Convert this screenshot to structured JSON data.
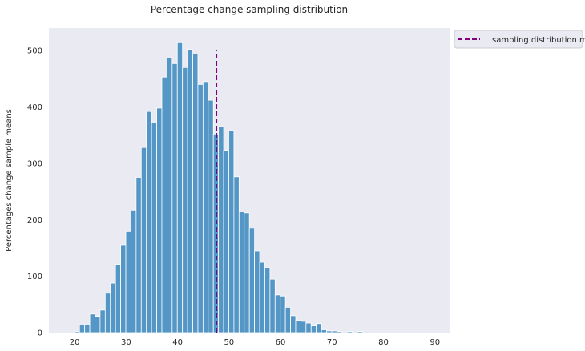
{
  "chart_data": {
    "type": "bar",
    "title": "Percentage change sampling distribution",
    "xlabel": "",
    "ylabel": "Percentages change sample means",
    "xlim": [
      15,
      93
    ],
    "ylim": [
      0,
      540
    ],
    "grid": false,
    "x_ticks": [
      20,
      30,
      40,
      50,
      60,
      70,
      80,
      90
    ],
    "y_ticks": [
      0,
      100,
      200,
      300,
      400,
      500
    ],
    "bin_start": 19.95,
    "bin_width": 1.0,
    "values": [
      2,
      15,
      15,
      33,
      29,
      40,
      70,
      88,
      120,
      155,
      180,
      217,
      275,
      328,
      392,
      372,
      398,
      453,
      487,
      477,
      514,
      470,
      502,
      494,
      440,
      445,
      412,
      352,
      365,
      323,
      358,
      276,
      214,
      212,
      185,
      145,
      125,
      115,
      95,
      67,
      65,
      45,
      30,
      22,
      20,
      17,
      12,
      16,
      5,
      3,
      3,
      2,
      0,
      2,
      0,
      2
    ],
    "mean_line": {
      "x": 47.55,
      "y_max": 500,
      "label": "sampling distribution mean",
      "color": "#800080"
    },
    "bar_color": "#5497c6",
    "background": "#eaeaf2",
    "legend_position": "outside-upper-right"
  }
}
